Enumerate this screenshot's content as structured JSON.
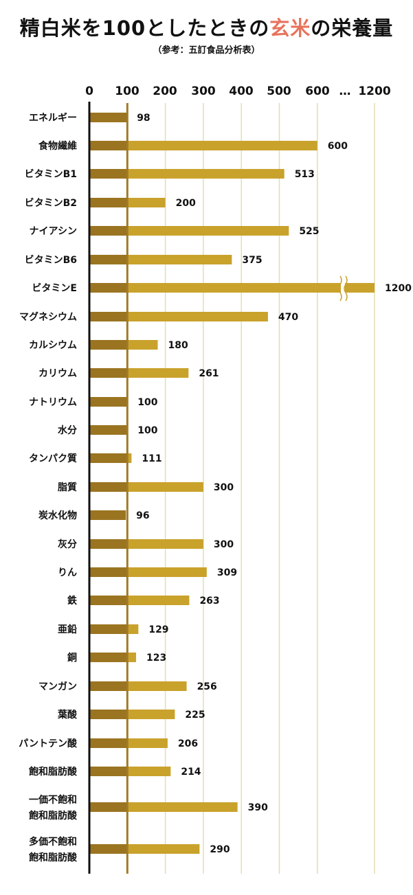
{
  "header": {
    "title_pre": "精白米を100としたときの",
    "title_accent": "玄米",
    "title_post": "の栄養量",
    "subtitle": "（参考：五訂食品分析表）"
  },
  "colors": {
    "base_bar": "#9a7420",
    "extra_bar": "#c9a22c",
    "ref_line": "#a07a26",
    "grid": "#e6dcb0",
    "axis": "#111111",
    "accent": "#e8735c",
    "break_mark": "#c9a22c"
  },
  "chart_data": {
    "type": "bar",
    "orientation": "horizontal",
    "title": "精白米を100としたときの玄米の栄養量",
    "subtitle": "（参考：五訂食品分析表）",
    "xticks": [
      "0",
      "100",
      "200",
      "300",
      "400",
      "500",
      "600",
      "…",
      "1200"
    ],
    "highlight_tick": "100",
    "axis_break": "600 … 1200",
    "reference_value": 100,
    "grid": true,
    "categories": [
      "エネルギー",
      "食物繊維",
      "ビタミンB1",
      "ビタミンB2",
      "ナイアシン",
      "ビタミンB6",
      "ビタミンE",
      "マグネシウム",
      "カルシウム",
      "カリウム",
      "ナトリウム",
      "水分",
      "タンパク質",
      "脂質",
      "炭水化物",
      "灰分",
      "りん",
      "鉄",
      "亜鉛",
      "銅",
      "マンガン",
      "葉酸",
      "パントテン酸",
      "飽和脂肪酸",
      "一価不飽和\n飽和脂肪酸",
      "多価不飽和\n飽和脂肪酸"
    ],
    "values": [
      98,
      600,
      513,
      200,
      525,
      375,
      1200,
      470,
      180,
      261,
      100,
      100,
      111,
      300,
      96,
      300,
      309,
      263,
      129,
      123,
      256,
      225,
      206,
      214,
      390,
      290
    ],
    "value_labels": [
      "98",
      "600",
      "513",
      "200",
      "525",
      "375",
      "1200",
      "470",
      "180",
      "261",
      "100",
      "100",
      "111",
      "300",
      "96",
      "300",
      "309",
      "263",
      "129",
      "123",
      "256",
      "225",
      "206",
      "214",
      "390",
      "290"
    ]
  }
}
